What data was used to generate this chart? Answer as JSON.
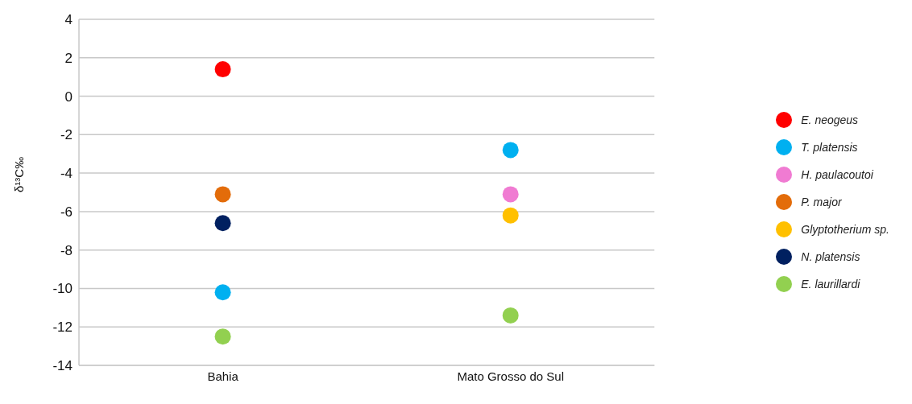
{
  "chart_data": {
    "type": "scatter",
    "ylabel": "δ¹³C‰",
    "categories": [
      "Bahia",
      "Mato Grosso do Sul"
    ],
    "series": [
      {
        "name": "E. neogeus",
        "color": "#ff0000",
        "values": [
          1.4,
          null
        ]
      },
      {
        "name": "T. platensis",
        "color": "#00b0f0",
        "values": [
          -10.2,
          -2.8
        ]
      },
      {
        "name": "H. paulacoutoi",
        "color": "#f07bd2",
        "values": [
          null,
          -5.1
        ]
      },
      {
        "name": "P. major",
        "color": "#e36c0a",
        "values": [
          -5.1,
          null
        ]
      },
      {
        "name": "Glyptotherium sp.",
        "color": "#ffc000",
        "values": [
          null,
          -6.2
        ]
      },
      {
        "name": "N. platensis",
        "color": "#002060",
        "values": [
          -6.6,
          null
        ]
      },
      {
        "name": "E. laurillardi",
        "color": "#92d050",
        "values": [
          -12.5,
          -11.4
        ]
      }
    ],
    "ylim": [
      -14,
      4
    ],
    "yticks": [
      -14,
      -12,
      -10,
      -8,
      -6,
      -4,
      -2,
      0,
      2,
      4
    ],
    "grid": "y",
    "legend": "right",
    "marker": "circle"
  }
}
